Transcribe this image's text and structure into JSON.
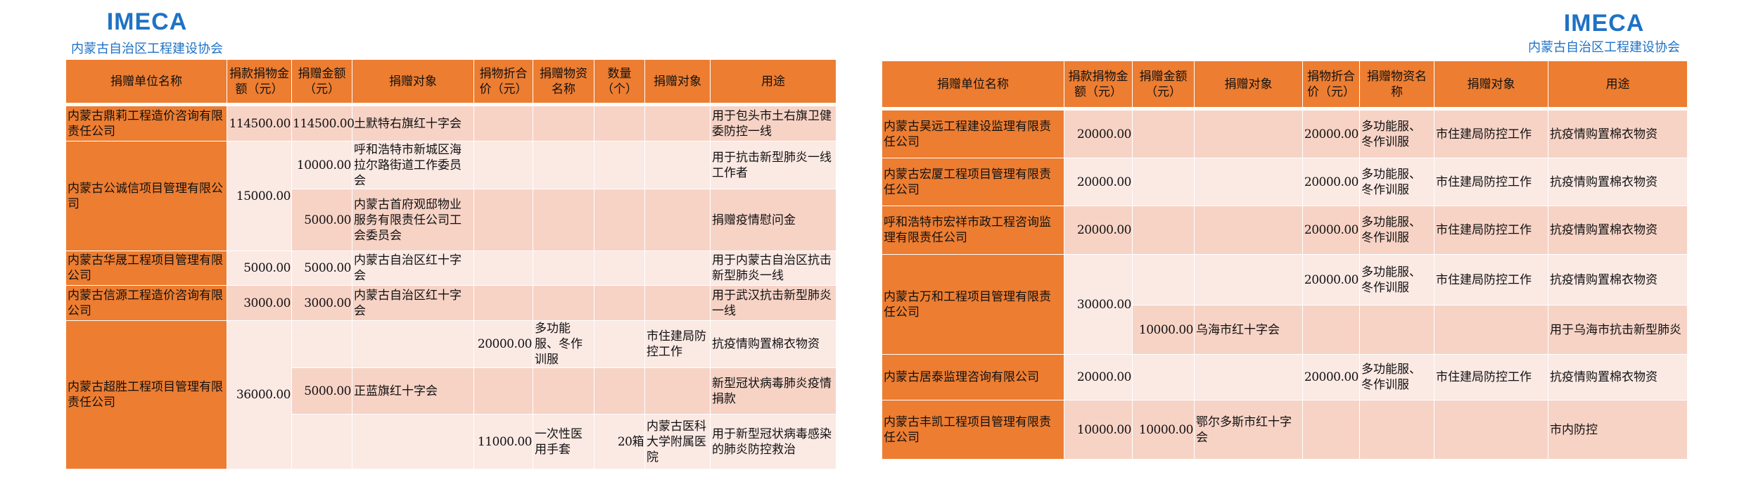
{
  "org": {
    "brand": "IMECA",
    "name": "内蒙古自治区工程建设协会"
  },
  "colors": {
    "header": "#ED7D31",
    "row_dark": "#F7D3C6",
    "row_light": "#FBE9E4",
    "brand": "#1F72C4"
  },
  "left_table": {
    "headers": [
      "捐赠单位名称",
      "捐款捐物金额（元）",
      "捐赠金额（元）",
      "捐赠对象",
      "捐物折合价（元）",
      "捐赠物资名称",
      "数量（个）",
      "捐赠对象",
      "用途"
    ],
    "rows": [
      [
        "内蒙古鼎莉工程造价咨询有限责任公司",
        "114500.00",
        "114500.00",
        "土默特右旗红十字会",
        "",
        "",
        "",
        "",
        "用于包头市土右旗卫健委防控一线"
      ],
      [
        "内蒙古公诚信项目管理有限公司",
        "15000.00",
        "10000.00",
        "呼和浩特市新城区海拉尔路街道工作委员会",
        "",
        "",
        "",
        "",
        "用于抗击新型肺炎一线工作者"
      ],
      [
        null,
        null,
        "5000.00",
        "内蒙古首府观邸物业服务有限责任公司工会委员会",
        "",
        "",
        "",
        "",
        "捐赠疫情慰问金"
      ],
      [
        "内蒙古华晟工程项目管理有限公司",
        "5000.00",
        "5000.00",
        "内蒙古自治区红十字会",
        "",
        "",
        "",
        "",
        "用于内蒙古自治区抗击新型肺炎一线"
      ],
      [
        "内蒙古信源工程造价咨询有限公司",
        "3000.00",
        "3000.00",
        "内蒙古自治区红十字会",
        "",
        "",
        "",
        "",
        "用于武汉抗击新型肺炎一线"
      ],
      [
        "内蒙古超胜工程项目管理有限责任公司",
        "36000.00",
        "",
        "",
        "20000.00",
        "多功能服、冬作训服",
        "",
        "市住建局防控工作",
        "抗疫情购置棉衣物资"
      ],
      [
        null,
        null,
        "5000.00",
        "正蓝旗红十字会",
        "",
        "",
        "",
        "",
        "新型冠状病毒肺炎疫情捐款"
      ],
      [
        null,
        null,
        "",
        "",
        "11000.00",
        "一次性医用手套",
        "20箱",
        "内蒙古医科大学附属医院",
        "用于新型冠状病毒感染的肺炎防控救治"
      ]
    ]
  },
  "right_table": {
    "headers": [
      "捐赠单位名称",
      "捐款捐物金额（元）",
      "捐赠金额（元）",
      "捐赠对象",
      "捐物折合价（元）",
      "捐赠物资名称",
      "捐赠对象",
      "用途"
    ],
    "rows": [
      [
        "内蒙古昊远工程建设监理有限责任公司",
        "20000.00",
        "",
        "",
        "20000.00",
        "多功能服、冬作训服",
        "市住建局防控工作",
        "抗疫情购置棉衣物资"
      ],
      [
        "内蒙古宏厦工程项目管理有限责任公司",
        "20000.00",
        "",
        "",
        "20000.00",
        "多功能服、冬作训服",
        "市住建局防控工作",
        "抗疫情购置棉衣物资"
      ],
      [
        "呼和浩特市宏祥市政工程咨询监理有限责任公司",
        "20000.00",
        "",
        "",
        "20000.00",
        "多功能服、冬作训服",
        "市住建局防控工作",
        "抗疫情购置棉衣物资"
      ],
      [
        "内蒙古万和工程项目管理有限责任公司",
        "30000.00",
        "",
        "",
        "20000.00",
        "多功能服、冬作训服",
        "市住建局防控工作",
        "抗疫情购置棉衣物资"
      ],
      [
        null,
        null,
        "10000.00",
        "乌海市红十字会",
        "",
        "",
        "",
        "用于乌海市抗击新型肺炎"
      ],
      [
        "内蒙古居泰监理咨询有限公司",
        "20000.00",
        "",
        "",
        "20000.00",
        "多功能服、冬作训服",
        "市住建局防控工作",
        "抗疫情购置棉衣物资"
      ],
      [
        "内蒙古丰凯工程项目管理有限责任公司",
        "10000.00",
        "10000.00",
        "鄂尔多斯市红十字会",
        "",
        "",
        "",
        "市内防控"
      ]
    ]
  }
}
